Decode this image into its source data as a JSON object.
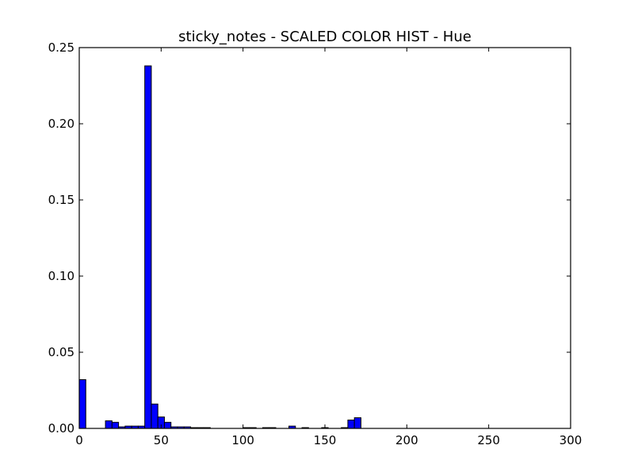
{
  "chart_data": {
    "type": "bar",
    "title": "sticky_notes - SCALED COLOR HIST - Hue",
    "xlabel": "",
    "ylabel": "",
    "xlim": [
      0,
      300
    ],
    "ylim": [
      0,
      0.25
    ],
    "xticks": [
      0,
      50,
      100,
      150,
      200,
      250,
      300
    ],
    "xtick_labels": [
      "0",
      "50",
      "100",
      "150",
      "200",
      "250",
      "300"
    ],
    "yticks": [
      0,
      0.05,
      0.1,
      0.15,
      0.2,
      0.25
    ],
    "ytick_labels": [
      "0.00",
      "0.05",
      "0.10",
      "0.15",
      "0.20",
      "0.25"
    ],
    "grid": false,
    "bar_color": "#0000ff",
    "bin_width": 4,
    "bars": [
      {
        "x": 0,
        "value": 0.032
      },
      {
        "x": 16,
        "value": 0.005
      },
      {
        "x": 20,
        "value": 0.004
      },
      {
        "x": 24,
        "value": 0.001
      },
      {
        "x": 28,
        "value": 0.0015
      },
      {
        "x": 32,
        "value": 0.0015
      },
      {
        "x": 36,
        "value": 0.0015
      },
      {
        "x": 40,
        "value": 0.238
      },
      {
        "x": 44,
        "value": 0.016
      },
      {
        "x": 48,
        "value": 0.0075
      },
      {
        "x": 52,
        "value": 0.004
      },
      {
        "x": 56,
        "value": 0.001
      },
      {
        "x": 60,
        "value": 0.001
      },
      {
        "x": 64,
        "value": 0.001
      },
      {
        "x": 68,
        "value": 0.0005
      },
      {
        "x": 72,
        "value": 0.0005
      },
      {
        "x": 76,
        "value": 0.0005
      },
      {
        "x": 100,
        "value": 0.0005
      },
      {
        "x": 104,
        "value": 0.0005
      },
      {
        "x": 112,
        "value": 0.0005
      },
      {
        "x": 116,
        "value": 0.0005
      },
      {
        "x": 128,
        "value": 0.0015
      },
      {
        "x": 136,
        "value": 0.0005
      },
      {
        "x": 148,
        "value": 0.0005
      },
      {
        "x": 160,
        "value": 0.0005
      },
      {
        "x": 164,
        "value": 0.0055
      },
      {
        "x": 168,
        "value": 0.007
      }
    ]
  }
}
